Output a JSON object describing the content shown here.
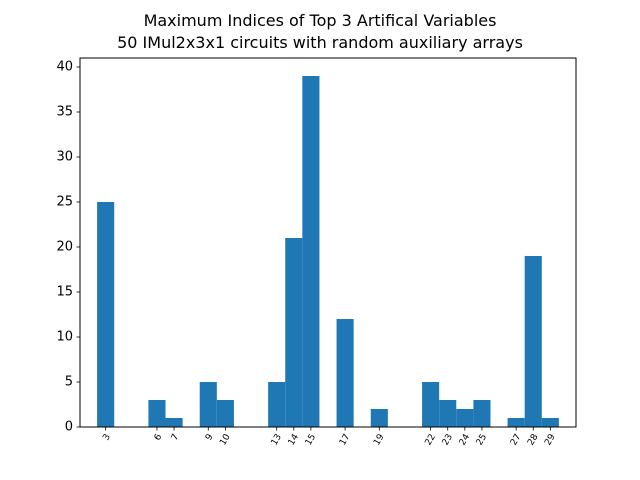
{
  "chart_data": {
    "type": "bar",
    "title": "Maximum Indices of Top 3 Artifical Variables",
    "subtitle": "50 IMul2x3x1 circuits with random auxiliary arrays",
    "xlabel": "",
    "ylabel": "",
    "categories": [
      "3",
      "6",
      "7",
      "9",
      "10",
      "13",
      "14",
      "15",
      "17",
      "19",
      "22",
      "23",
      "24",
      "25",
      "27",
      "28",
      "29"
    ],
    "x": [
      3,
      6,
      7,
      9,
      10,
      13,
      14,
      15,
      17,
      19,
      22,
      23,
      24,
      25,
      27,
      28,
      29
    ],
    "values": [
      25,
      3,
      1,
      5,
      3,
      5,
      21,
      39,
      12,
      2,
      5,
      3,
      2,
      3,
      1,
      19,
      1
    ],
    "xlim": [
      1.5,
      30.5
    ],
    "ylim": [
      0,
      41
    ],
    "yticks": [
      0,
      5,
      10,
      15,
      20,
      25,
      30,
      35,
      40
    ],
    "grid": false,
    "legend": "none",
    "color": "#1f77b4"
  }
}
